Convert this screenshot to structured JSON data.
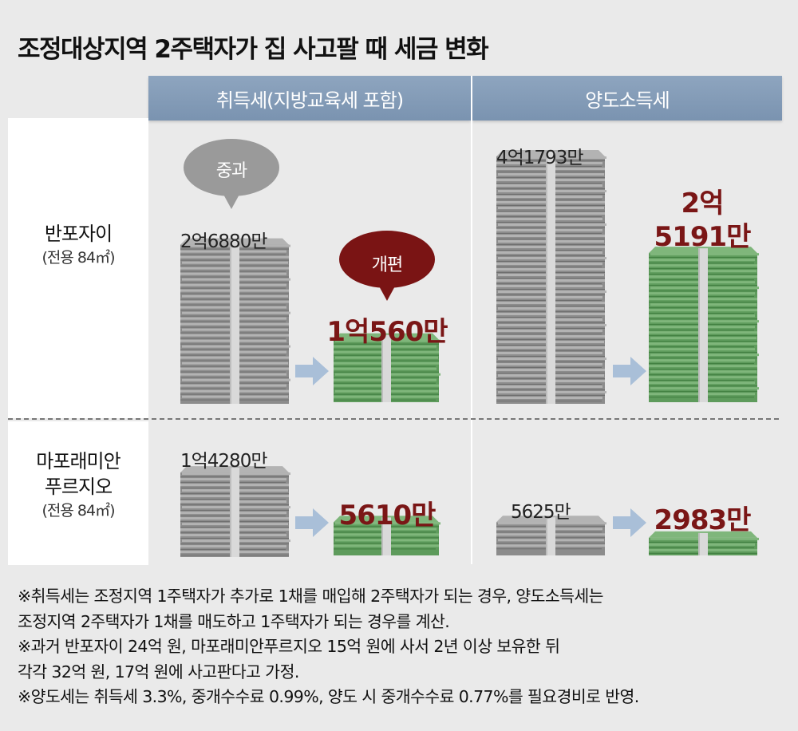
{
  "title": "조정대상지역 2주택자가 집 사고팔 때 세금 변화",
  "headers": {
    "acquisition": "취득세(지방교육세 포함)",
    "transfer": "양도소득세"
  },
  "rows": [
    {
      "name": "반포자이",
      "sub": "(전용 84㎡)"
    },
    {
      "name_line1": "마포래미안",
      "name_line2": "푸르지오",
      "sub": "(전용 84㎡)"
    }
  ],
  "bubbles": {
    "before": "중과",
    "after": "개편"
  },
  "colors": {
    "header": "#8199b5",
    "before_money": "#8c8c8c",
    "after_money": "#5e9b5c",
    "after_text": "#7a1616",
    "bubble_gray": "#9a9a9a",
    "bubble_red": "#7a1414",
    "arrow": "#a9bfd8"
  },
  "chart_data": {
    "type": "bar",
    "unit": "원",
    "categories": [
      "반포자이",
      "마포래미안푸르지오"
    ],
    "groups": [
      {
        "name": "취득세(지방교육세 포함)",
        "before": {
          "values": [
            268800000,
            142800000
          ],
          "labels": [
            "2억6880만",
            "1억4280만"
          ]
        },
        "after": {
          "values": [
            105600000,
            56100000
          ],
          "labels": [
            "1억560만",
            "5610만"
          ]
        }
      },
      {
        "name": "양도소득세",
        "before": {
          "values": [
            417930000,
            56250000
          ],
          "labels": [
            "4억1793만",
            "5625만"
          ]
        },
        "after": {
          "values": [
            251910000,
            29830000
          ],
          "labels_multiline": [
            [
              "2억",
              "5191만"
            ],
            [
              "2983만"
            ]
          ]
        }
      }
    ]
  },
  "notes": [
    "※취득세는 조정지역 1주택자가 추가로 1채를 매입해 2주택자가 되는 경우, 양도소득세는",
    "조정지역 2주택자가 1채를 매도하고 1주택자가 되는 경우를 계산.",
    "※과거 반포자이 24억 원, 마포래미안푸르지오 15억 원에 사서 2년 이상 보유한 뒤",
    "각각 32억 원, 17억 원에 사고판다고 가정.",
    "※양도세는 취득세 3.3%, 중개수수료 0.99%, 양도 시 중개수수료 0.77%를 필요경비로 반영."
  ]
}
